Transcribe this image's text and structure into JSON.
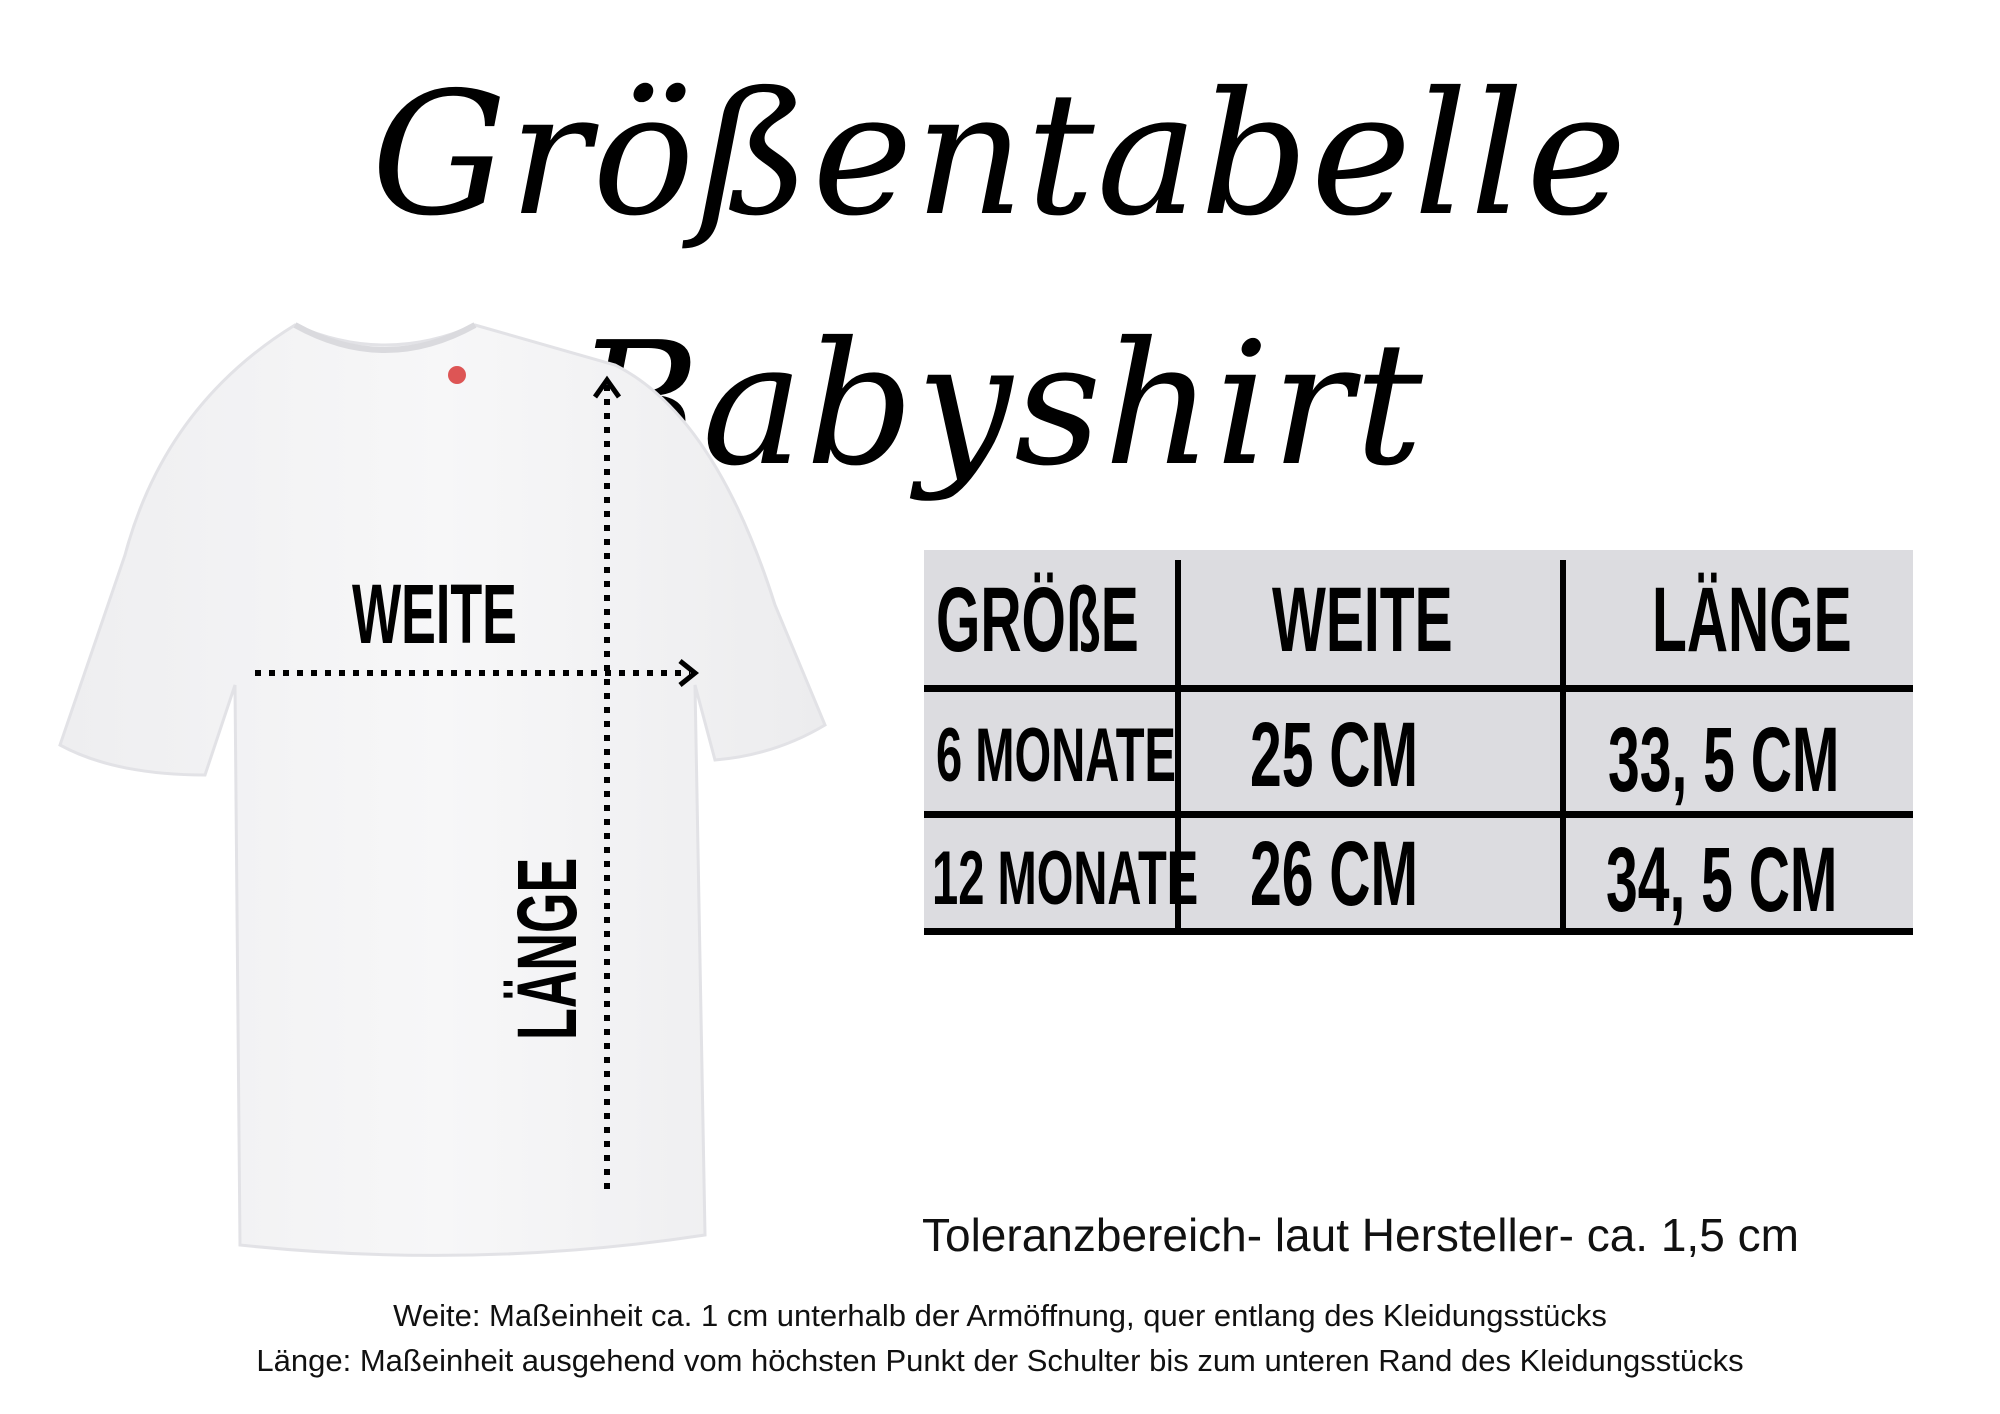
{
  "title": "Größentabelle Babyshirt",
  "diagram": {
    "width_label": "WEITE",
    "length_label": "LÄNGE"
  },
  "table": {
    "headers": [
      "GRÖßE",
      "WEITE",
      "LÄNGE"
    ],
    "rows": [
      [
        "6 MONATE",
        "25 CM",
        "33, 5 CM"
      ],
      [
        "12 MONATE",
        "26 CM",
        "34, 5 CM"
      ]
    ],
    "background": "#dcdce0"
  },
  "tolerance": "Toleranzbereich- laut Hersteller- ca. 1,5 cm",
  "notes": [
    "Weite: Maßeinheit ca. 1 cm unterhalb der Armöffnung, quer entlang des Kleidungsstücks",
    "Länge: Maßeinheit ausgehend vom höchsten Punkt der Schulter bis zum unteren Rand des Kleidungsstücks"
  ]
}
